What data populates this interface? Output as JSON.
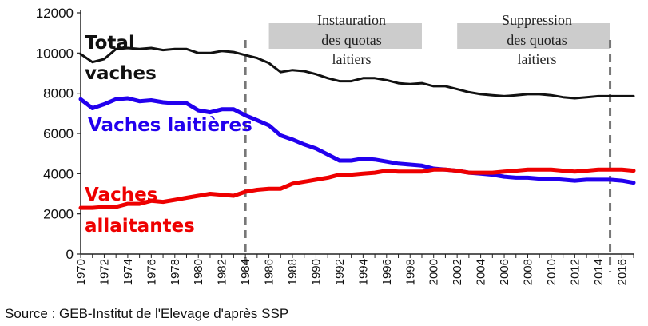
{
  "chart_data": {
    "type": "line",
    "ylim": [
      0,
      12000
    ],
    "yticks": [
      0,
      2000,
      4000,
      6000,
      8000,
      10000,
      12000
    ],
    "xlim": [
      1970,
      2017
    ],
    "xticks": [
      1970,
      1972,
      1974,
      1976,
      1978,
      1980,
      1982,
      1984,
      1986,
      1988,
      1990,
      1992,
      1994,
      1996,
      1998,
      2000,
      2002,
      2004,
      2006,
      2008,
      2010,
      2012,
      2014,
      2016
    ],
    "grid": false,
    "x": [
      1970,
      1971,
      1972,
      1973,
      1974,
      1975,
      1976,
      1977,
      1978,
      1979,
      1980,
      1981,
      1982,
      1983,
      1984,
      1985,
      1986,
      1987,
      1988,
      1989,
      1990,
      1991,
      1992,
      1993,
      1994,
      1995,
      1996,
      1997,
      1998,
      1999,
      2000,
      2001,
      2002,
      2003,
      2004,
      2005,
      2006,
      2007,
      2008,
      2009,
      2010,
      2011,
      2012,
      2013,
      2014,
      2015,
      2016,
      2017
    ],
    "series": [
      {
        "name": "Total vaches",
        "label_lines": [
          "Total",
          "vaches"
        ],
        "color": "#111111",
        "values": [
          9950,
          9550,
          9700,
          10200,
          10250,
          10200,
          10250,
          10150,
          10200,
          10200,
          10000,
          10000,
          10100,
          10050,
          9900,
          9750,
          9500,
          9050,
          9150,
          9100,
          8950,
          8750,
          8600,
          8600,
          8750,
          8750,
          8650,
          8500,
          8450,
          8500,
          8350,
          8350,
          8200,
          8050,
          7950,
          7900,
          7850,
          7900,
          7950,
          7950,
          7900,
          7800,
          7750,
          7800,
          7850,
          7850,
          7850,
          7850
        ]
      },
      {
        "name": "Vaches laitières",
        "label_lines": [
          "Vaches laitières"
        ],
        "color": "#2200ee",
        "values": [
          7700,
          7250,
          7450,
          7700,
          7750,
          7600,
          7650,
          7550,
          7500,
          7500,
          7150,
          7050,
          7200,
          7200,
          6900,
          6650,
          6400,
          5900,
          5700,
          5450,
          5250,
          4950,
          4650,
          4650,
          4750,
          4700,
          4600,
          4500,
          4450,
          4400,
          4250,
          4200,
          4150,
          4050,
          4000,
          3950,
          3850,
          3800,
          3800,
          3750,
          3750,
          3700,
          3650,
          3700,
          3700,
          3700,
          3650,
          3550
        ]
      },
      {
        "name": "Vaches allaitantes",
        "label_lines": [
          "Vaches",
          "allaitantes"
        ],
        "color": "#ee0000",
        "values": [
          2300,
          2300,
          2350,
          2350,
          2500,
          2500,
          2650,
          2600,
          2700,
          2800,
          2900,
          3000,
          2950,
          2900,
          3100,
          3200,
          3250,
          3250,
          3500,
          3600,
          3700,
          3800,
          3950,
          3950,
          4000,
          4050,
          4150,
          4100,
          4100,
          4100,
          4200,
          4200,
          4150,
          4050,
          4050,
          4050,
          4100,
          4150,
          4200,
          4200,
          4200,
          4150,
          4100,
          4150,
          4200,
          4200,
          4200,
          4150
        ]
      }
    ],
    "annotations": [
      {
        "lines": [
          "Instauration",
          "des quotas",
          "laitiers"
        ],
        "year": 1984,
        "band": [
          1986,
          1999
        ]
      },
      {
        "lines": [
          "Suppression",
          "des quotas",
          "laitiers"
        ],
        "year": 2015,
        "band": [
          2002,
          2015
        ]
      }
    ],
    "source": "Source : GEB-Institut de l'Elevage d'après SSP",
    "colors": {
      "band": "#cccccc",
      "marker_line": "#777777",
      "axis": "#222222"
    }
  }
}
